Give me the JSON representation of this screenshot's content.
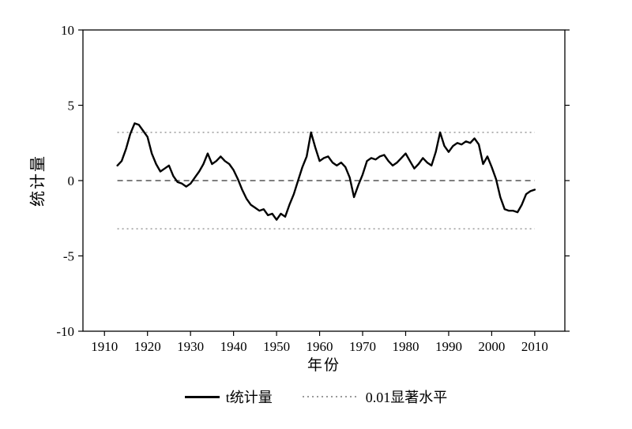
{
  "chart_data": {
    "type": "line",
    "title": "",
    "xlabel": "年份",
    "ylabel": "统计量",
    "xlim": [
      1905,
      2017
    ],
    "ylim": [
      -10,
      10
    ],
    "xticks": [
      1910,
      1920,
      1930,
      1940,
      1950,
      1960,
      1970,
      1980,
      1990,
      2000,
      2010
    ],
    "yticks": [
      -10,
      -5,
      0,
      5,
      10
    ],
    "grid": false,
    "legend_position": "bottom-center",
    "series": [
      {
        "name": "t统计量",
        "style": "solid",
        "color": "#000000",
        "x": [
          1913,
          1914,
          1915,
          1916,
          1917,
          1918,
          1919,
          1920,
          1921,
          1922,
          1923,
          1924,
          1925,
          1926,
          1927,
          1928,
          1929,
          1930,
          1931,
          1932,
          1933,
          1934,
          1935,
          1936,
          1937,
          1938,
          1939,
          1940,
          1941,
          1942,
          1943,
          1944,
          1945,
          1946,
          1947,
          1948,
          1949,
          1950,
          1951,
          1952,
          1953,
          1954,
          1955,
          1956,
          1957,
          1958,
          1959,
          1960,
          1961,
          1962,
          1963,
          1964,
          1965,
          1966,
          1967,
          1968,
          1969,
          1970,
          1971,
          1972,
          1973,
          1974,
          1975,
          1976,
          1977,
          1978,
          1979,
          1980,
          1981,
          1982,
          1983,
          1984,
          1985,
          1986,
          1987,
          1988,
          1989,
          1990,
          1991,
          1992,
          1993,
          1994,
          1995,
          1996,
          1997,
          1998,
          1999,
          2000,
          2001,
          2002,
          2003,
          2004,
          2005,
          2006,
          2007,
          2008,
          2009,
          2010
        ],
        "y": [
          1.0,
          1.3,
          2.1,
          3.1,
          3.8,
          3.7,
          3.3,
          2.9,
          1.8,
          1.1,
          0.6,
          0.8,
          1.0,
          0.3,
          -0.1,
          -0.2,
          -0.4,
          -0.2,
          0.2,
          0.6,
          1.1,
          1.8,
          1.1,
          1.3,
          1.6,
          1.3,
          1.1,
          0.7,
          0.1,
          -0.6,
          -1.2,
          -1.6,
          -1.8,
          -2.0,
          -1.9,
          -2.3,
          -2.2,
          -2.6,
          -2.2,
          -2.4,
          -1.6,
          -0.9,
          0.0,
          0.9,
          1.6,
          3.2,
          2.2,
          1.3,
          1.5,
          1.6,
          1.2,
          1.0,
          1.2,
          0.9,
          0.2,
          -1.1,
          -0.3,
          0.4,
          1.3,
          1.5,
          1.4,
          1.6,
          1.7,
          1.3,
          1.0,
          1.2,
          1.5,
          1.8,
          1.3,
          0.8,
          1.1,
          1.5,
          1.2,
          1.0,
          1.9,
          3.2,
          2.3,
          1.9,
          2.3,
          2.5,
          2.4,
          2.6,
          2.5,
          2.8,
          2.4,
          1.1,
          1.6,
          0.9,
          0.1,
          -1.1,
          -1.9,
          -2.0,
          -2.0,
          -2.1,
          -1.6,
          -0.9,
          -0.7,
          -0.6
        ]
      }
    ],
    "reference_lines": [
      {
        "name": "sig-level-upper",
        "label": "0.01显著水平",
        "y": 3.2,
        "x1": 1913,
        "x2": 2010,
        "style": "dotted",
        "color": "#9a9a9a"
      },
      {
        "name": "sig-level-lower",
        "label": "0.01显著水平",
        "y": -3.2,
        "x1": 1913,
        "x2": 2010,
        "style": "dotted",
        "color": "#9a9a9a"
      },
      {
        "name": "zero-line",
        "label": "",
        "y": 0,
        "x1": 1913,
        "x2": 2010,
        "style": "dashed",
        "color": "#555555"
      }
    ],
    "legend": [
      {
        "label": "t统计量",
        "line": "solid",
        "color": "#000000"
      },
      {
        "label": "0.01显著水平",
        "line": "dotted",
        "color": "#9a9a9a"
      }
    ]
  }
}
